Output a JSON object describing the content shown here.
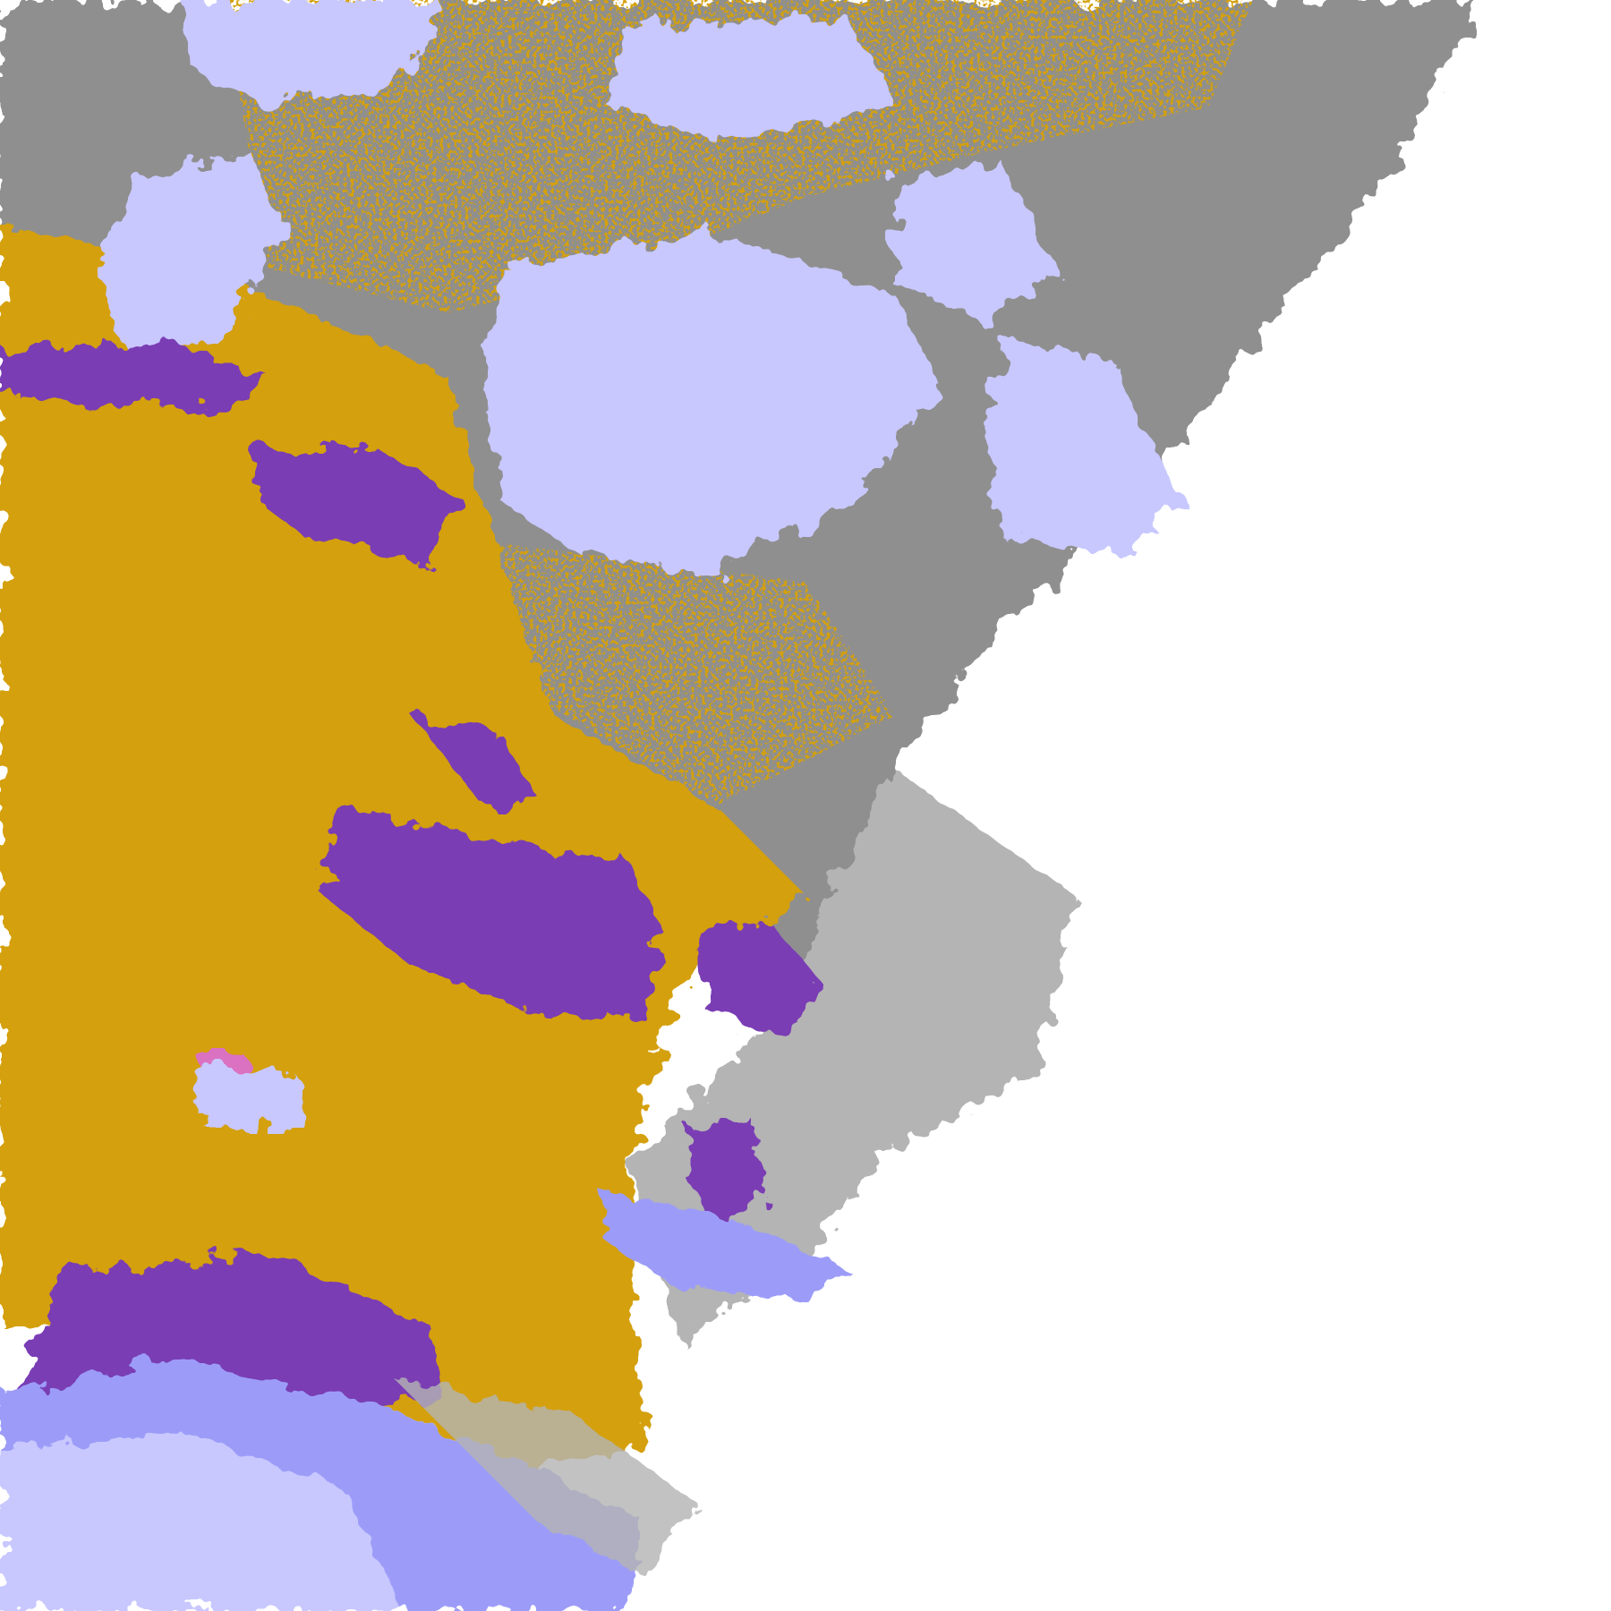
{
  "map": {
    "kind": "cloud-classification raster",
    "background": "#ffffff",
    "palette": {
      "gold": "#d4a00a",
      "purple": "#7a3cb4",
      "lavender": "#c8c8ff",
      "periwinkle": "#9c9cf8",
      "gray": "#8f8f8f",
      "light_gray": "#b4b4b4",
      "magenta": "#dd66ee",
      "pale": "#e8e8ff"
    }
  }
}
